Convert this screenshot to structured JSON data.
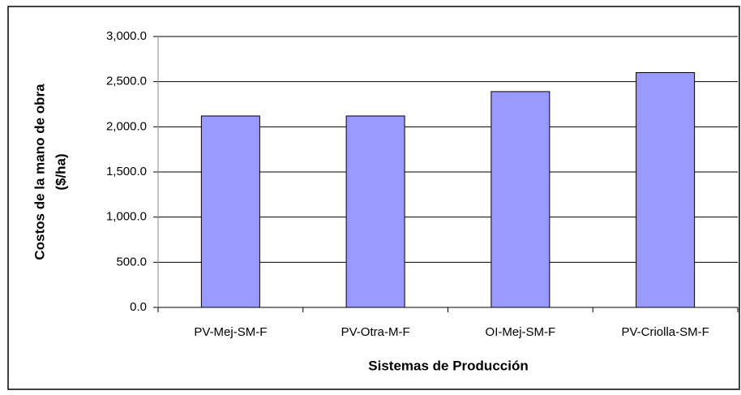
{
  "chart_data": {
    "type": "bar",
    "xlabel": "Sistemas de Producción",
    "ylabel": [
      "Costos de la mano de obra",
      "($/ha)"
    ],
    "categories": [
      "PV-Mej-SM-F",
      "PV-Otra-M-F",
      "OI-Mej-SM-F",
      "PV-Criolla-SM-F"
    ],
    "values": [
      2120,
      2120,
      2390,
      2600
    ],
    "color": "#9999ff",
    "ylim": [
      0,
      3000
    ],
    "yticks": [
      {
        "value": 0,
        "label": "0.0"
      },
      {
        "value": 500,
        "label": "500.0"
      },
      {
        "value": 1000,
        "label": "1,000.0"
      },
      {
        "value": 1500,
        "label": "1,500.0"
      },
      {
        "value": 2000,
        "label": "2,000.0"
      },
      {
        "value": 2500,
        "label": "2,500.0"
      },
      {
        "value": 3000,
        "label": "3,000.0"
      }
    ],
    "grid": true
  }
}
